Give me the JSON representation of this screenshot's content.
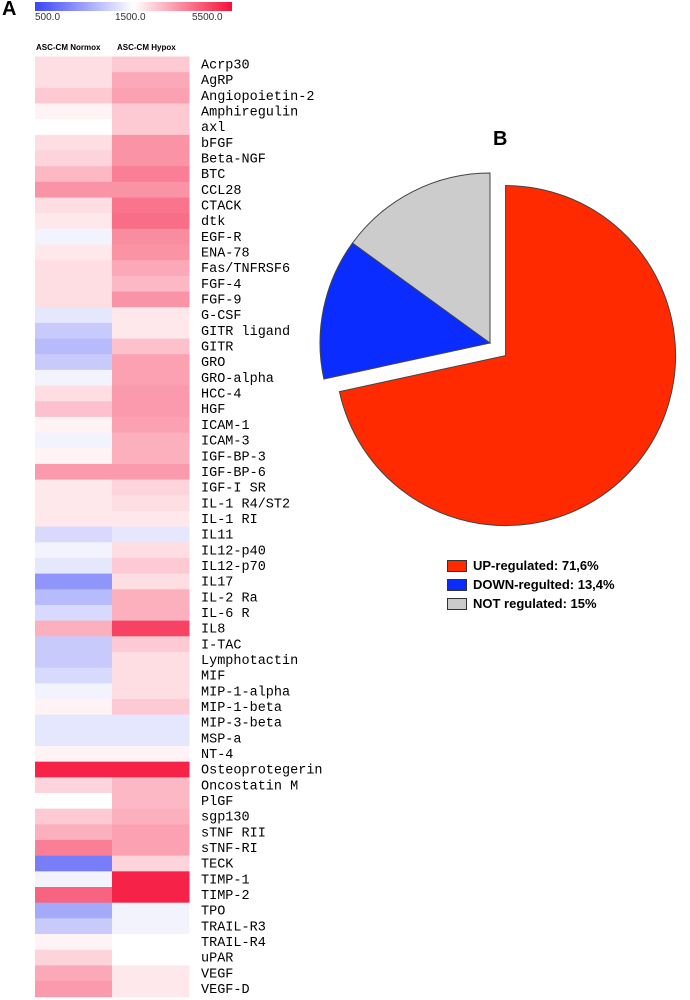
{
  "figure": {
    "panel_a_label": "A",
    "panel_b_label": "B"
  },
  "chart_data": [
    {
      "type": "heatmap",
      "colorbar": {
        "ticks": [
          "500.0",
          "1500.0",
          "5500.0"
        ],
        "colors": [
          "#3b45f5",
          "#ffffff",
          "#f5103a"
        ]
      },
      "columns": [
        "ASC-CM  Normox",
        "ASC-CM  Hypox"
      ],
      "rows": [
        {
          "name": "Acrp30",
          "values": [
            1800,
            2000
          ]
        },
        {
          "name": "AgRP",
          "values": [
            1800,
            2400
          ]
        },
        {
          "name": "Angiopoietin-2",
          "values": [
            2000,
            2500
          ]
        },
        {
          "name": "Amphiregulin",
          "values": [
            1600,
            2000
          ]
        },
        {
          "name": "axl",
          "values": [
            1500,
            2000
          ]
        },
        {
          "name": "bFGF",
          "values": [
            1800,
            2700
          ]
        },
        {
          "name": "Beta-NGF",
          "values": [
            1900,
            2700
          ]
        },
        {
          "name": "BTC",
          "values": [
            2200,
            3000
          ]
        },
        {
          "name": "CCL28",
          "values": [
            2700,
            2700
          ]
        },
        {
          "name": "CTACK",
          "values": [
            1800,
            3200
          ]
        },
        {
          "name": "dtk",
          "values": [
            1700,
            3300
          ]
        },
        {
          "name": "EGF-R",
          "values": [
            1400,
            2800
          ]
        },
        {
          "name": "ENA-78",
          "values": [
            1700,
            2700
          ]
        },
        {
          "name": "Fas/TNFRSF6",
          "values": [
            1800,
            2400
          ]
        },
        {
          "name": "FGF-4",
          "values": [
            1800,
            2200
          ]
        },
        {
          "name": "FGF-9",
          "values": [
            1800,
            2700
          ]
        },
        {
          "name": "G-CSF",
          "values": [
            1300,
            1700
          ]
        },
        {
          "name": "GITR ligand",
          "values": [
            1100,
            1700
          ]
        },
        {
          "name": "GITR",
          "values": [
            1000,
            2100
          ]
        },
        {
          "name": "GRO",
          "values": [
            1100,
            2500
          ]
        },
        {
          "name": "GRO-alpha",
          "values": [
            1400,
            2500
          ]
        },
        {
          "name": "HCC-4",
          "values": [
            1800,
            2600
          ]
        },
        {
          "name": "HGF",
          "values": [
            2100,
            2600
          ]
        },
        {
          "name": "ICAM-1",
          "values": [
            1600,
            2500
          ]
        },
        {
          "name": "ICAM-3",
          "values": [
            1400,
            2300
          ]
        },
        {
          "name": "IGF-BP-3",
          "values": [
            1600,
            2300
          ]
        },
        {
          "name": "IGF-BP-6",
          "values": [
            2600,
            2600
          ]
        },
        {
          "name": "IGF-I SR",
          "values": [
            1700,
            1900
          ]
        },
        {
          "name": "IL-1 R4/ST2",
          "values": [
            1700,
            1800
          ]
        },
        {
          "name": "IL-1 RI",
          "values": [
            1700,
            1700
          ]
        },
        {
          "name": "IL11",
          "values": [
            1200,
            1300
          ]
        },
        {
          "name": "IL12-p40",
          "values": [
            1400,
            1800
          ]
        },
        {
          "name": "IL12-p70",
          "values": [
            1300,
            2000
          ]
        },
        {
          "name": "IL17",
          "values": [
            800,
            1800
          ]
        },
        {
          "name": "IL-2 Ra",
          "values": [
            1000,
            2300
          ]
        },
        {
          "name": "IL-6 R",
          "values": [
            1200,
            2300
          ]
        },
        {
          "name": "IL8",
          "values": [
            2300,
            4200
          ]
        },
        {
          "name": "I-TAC",
          "values": [
            1100,
            2000
          ]
        },
        {
          "name": "Lymphotactin",
          "values": [
            1100,
            1800
          ]
        },
        {
          "name": "MIF",
          "values": [
            1200,
            1800
          ]
        },
        {
          "name": "MIP-1-alpha",
          "values": [
            1400,
            1800
          ]
        },
        {
          "name": "MIP-1-beta",
          "values": [
            1600,
            2000
          ]
        },
        {
          "name": "MIP-3-beta",
          "values": [
            1300,
            1300
          ]
        },
        {
          "name": "MSP-a",
          "values": [
            1300,
            1300
          ]
        },
        {
          "name": "NT-4",
          "values": [
            1600,
            1600
          ]
        },
        {
          "name": "Osteoprotegerin",
          "values": [
            5000,
            5000
          ]
        },
        {
          "name": "Oncostatin M",
          "values": [
            1900,
            2200
          ]
        },
        {
          "name": "PlGF",
          "values": [
            1500,
            2200
          ]
        },
        {
          "name": "sgp130",
          "values": [
            2000,
            2300
          ]
        },
        {
          "name": "sTNF RII",
          "values": [
            2300,
            2500
          ]
        },
        {
          "name": "sTNF-RI",
          "values": [
            3000,
            2500
          ]
        },
        {
          "name": "TECK",
          "values": [
            700,
            1900
          ]
        },
        {
          "name": "TIMP-1",
          "values": [
            1400,
            5000
          ]
        },
        {
          "name": "TIMP-2",
          "values": [
            3500,
            5000
          ]
        },
        {
          "name": "TPO",
          "values": [
            900,
            1400
          ]
        },
        {
          "name": "TRAIL-R3",
          "values": [
            1100,
            1400
          ]
        },
        {
          "name": "TRAIL-R4",
          "values": [
            1600,
            1500
          ]
        },
        {
          "name": "uPAR",
          "values": [
            1900,
            1500
          ]
        },
        {
          "name": "VEGF",
          "values": [
            2400,
            1700
          ]
        },
        {
          "name": "VEGF-D",
          "values": [
            2600,
            1700
          ]
        }
      ]
    },
    {
      "type": "pie",
      "slices": [
        {
          "label": "UP-regulated: 71,6%",
          "value": 71.6,
          "color": "#ff2a00",
          "exploded": true
        },
        {
          "label": "DOWN-regulted: 13,4%",
          "value": 13.4,
          "color": "#0a2cff",
          "exploded": false
        },
        {
          "label": "NOT regulated: 15%",
          "value": 15,
          "color": "#cccccc",
          "exploded": false
        }
      ]
    }
  ]
}
